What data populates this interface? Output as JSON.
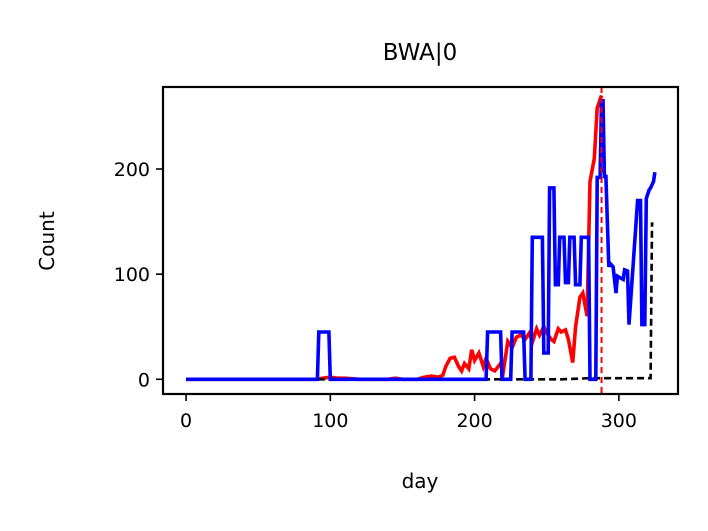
{
  "chart_data": {
    "type": "line",
    "title": "BWA|0",
    "xlabel": "day",
    "ylabel": "Count",
    "xlim": [
      -16,
      341
    ],
    "ylim": [
      -14,
      278
    ],
    "xticks": [
      0,
      100,
      200,
      300
    ],
    "yticks": [
      0,
      100,
      200
    ],
    "grid": false,
    "series": [
      {
        "color": "#ff0000",
        "style": "solid",
        "x": [
          0,
          50,
          90,
          95,
          100,
          105,
          110,
          120,
          140,
          145,
          150,
          160,
          165,
          170,
          175,
          178,
          180,
          183,
          186,
          189,
          191,
          193,
          196,
          198,
          200,
          203,
          206,
          208,
          211,
          214,
          218,
          220,
          223,
          226,
          229,
          232,
          235,
          238,
          240,
          243,
          245,
          248,
          250,
          253,
          255,
          258,
          260,
          263,
          265,
          268,
          270,
          273,
          275,
          278,
          280,
          283,
          285,
          288
        ],
        "y": [
          0,
          0,
          0,
          1,
          2,
          1,
          1,
          0,
          0,
          1,
          0,
          0,
          2,
          3,
          2,
          4,
          12,
          20,
          21,
          12,
          8,
          15,
          10,
          28,
          18,
          25,
          12,
          20,
          10,
          8,
          15,
          8,
          36,
          30,
          40,
          42,
          38,
          44,
          35,
          48,
          42,
          50,
          44,
          38,
          36,
          48,
          45,
          47,
          38,
          16,
          50,
          78,
          82,
          60,
          188,
          210,
          258,
          270
        ]
      },
      {
        "color": "#0000ff",
        "style": "solid",
        "x": [
          0,
          91,
          92,
          99,
          100,
          208,
          209,
          218,
          219,
          225,
          226,
          234,
          235,
          239,
          240,
          247,
          248,
          251,
          252,
          255,
          256,
          258,
          259,
          262,
          263,
          265,
          266,
          269,
          270,
          273,
          274,
          279,
          280,
          284,
          285,
          287,
          288,
          289,
          290,
          291,
          293,
          294,
          296,
          297,
          298,
          299,
          303,
          304,
          306,
          307,
          313,
          314,
          315,
          316,
          318,
          319,
          321,
          322,
          324,
          325
        ],
        "y": [
          0,
          0,
          45,
          45,
          0,
          0,
          45,
          45,
          0,
          0,
          45,
          45,
          0,
          0,
          135,
          135,
          25,
          25,
          182,
          182,
          90,
          90,
          135,
          135,
          92,
          92,
          135,
          135,
          90,
          90,
          135,
          135,
          0,
          0,
          192,
          192,
          265,
          265,
          193,
          193,
          107,
          110,
          107,
          95,
          82,
          98,
          95,
          104,
          103,
          52,
          170,
          170,
          170,
          52,
          52,
          172,
          180,
          182,
          188,
          197
        ]
      },
      {
        "color": "#000000",
        "style": "dashed",
        "x": [
          0,
          260,
          280,
          300,
          322,
          323,
          324
        ],
        "y": [
          0,
          0,
          1,
          1,
          1,
          148,
          148
        ]
      }
    ],
    "reference_lines": [
      {
        "axis": "x",
        "value": 288,
        "color": "#ff0000",
        "style": "dashed"
      }
    ]
  }
}
